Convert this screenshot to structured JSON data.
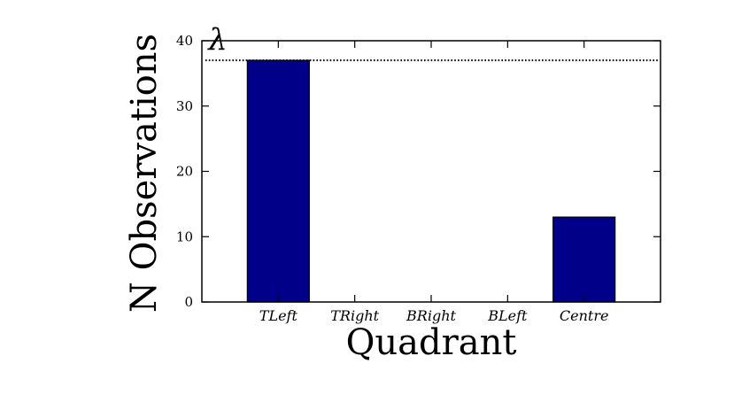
{
  "chart_data": {
    "type": "bar",
    "title": "",
    "xlabel": "Quadrant",
    "ylabel": "N Observations",
    "categories": [
      "TLeft",
      "TRight",
      "BRight",
      "BLeft",
      "Centre"
    ],
    "values": [
      37,
      0,
      0,
      0,
      13
    ],
    "ylim": [
      0,
      40
    ],
    "yticks": [
      0,
      10,
      20,
      30,
      40
    ],
    "reference_line": {
      "label": "λ",
      "value": 37,
      "style": "dotted"
    },
    "bar_color": "#000088",
    "grid": false,
    "legend": "none"
  }
}
